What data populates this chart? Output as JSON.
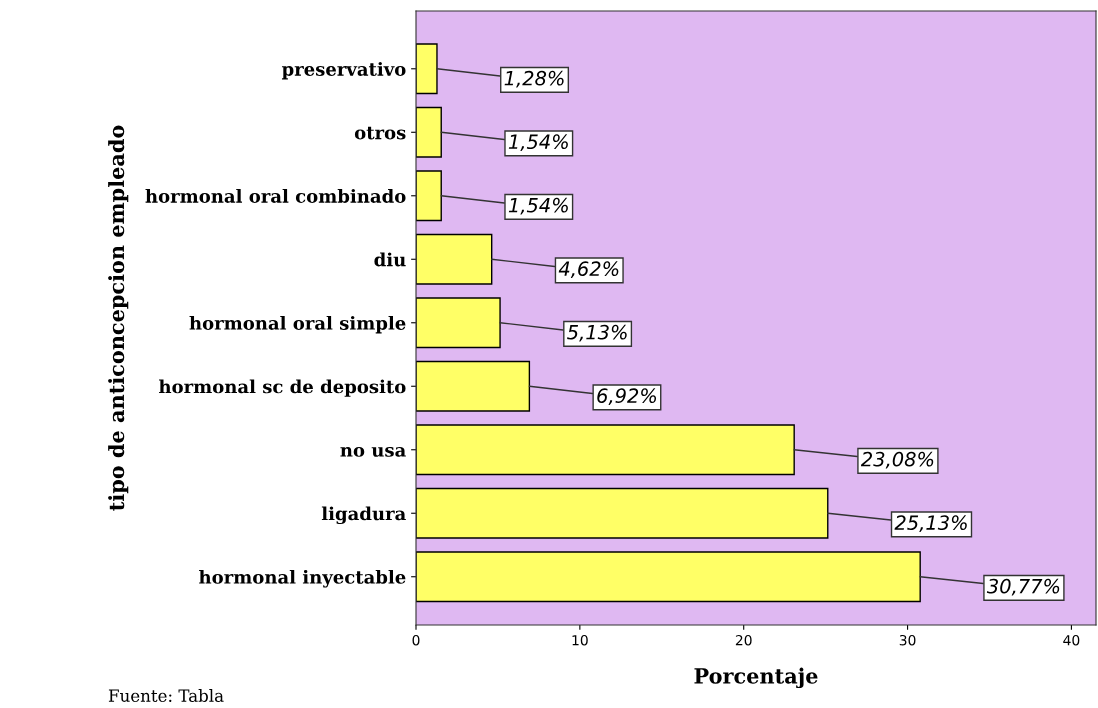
{
  "chart_data": {
    "type": "bar",
    "orientation": "horizontal",
    "xlabel": "Porcentaje",
    "ylabel": "tipo de anticoncepcion empleado",
    "categories": [
      "preservativo",
      "otros",
      "hormonal oral combinado",
      "diu",
      "hormonal oral simple",
      "hormonal sc de deposito",
      "no usa",
      "ligadura",
      "hormonal inyectable"
    ],
    "values": [
      1.28,
      1.54,
      1.54,
      4.62,
      5.13,
      6.92,
      23.08,
      25.13,
      30.77
    ],
    "value_labels": [
      "1,28%",
      "1,54%",
      "1,54%",
      "4,62%",
      "5,13%",
      "6,92%",
      "23,08%",
      "25,13%",
      "30,77%"
    ],
    "color": "#ffff66",
    "xlim": [
      0,
      41.5
    ],
    "xticks": [
      0,
      10,
      20,
      30,
      40
    ],
    "grid": false,
    "legend": false,
    "annotations": [
      "Fuente: Tabla"
    ]
  }
}
